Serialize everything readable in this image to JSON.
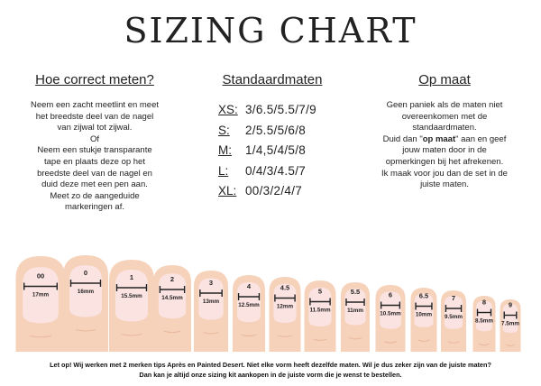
{
  "title": "SIZING CHART",
  "measure": {
    "heading": "Hoe correct meten?",
    "lines": [
      "Neem een zacht meetlint en meet",
      "het breedste deel van de nagel",
      "van zijwal tot zijwal.",
      "Of",
      "Neem een stukje transparante",
      "tape en plaats deze op het",
      "breedste deel van de nagel en",
      "duid deze met een pen aan.",
      "Meet zo de aangeduide",
      "markeringen af."
    ]
  },
  "standard": {
    "heading": "Standaardmaten",
    "sizes": [
      {
        "label": "XS:",
        "value": "3/6.5/5.5/7/9"
      },
      {
        "label": "S:",
        "value": "2/5.5/5/6/8"
      },
      {
        "label": "M:",
        "value": "1/4,5/4/5/8"
      },
      {
        "label": "L:",
        "value": "0/4/3/4.5/7"
      },
      {
        "label": "XL:",
        "value": "00/3/2/4/7"
      }
    ]
  },
  "custom": {
    "heading": "Op maat",
    "line1": "Geen paniek als de maten niet",
    "line2": "overeenkomen met de",
    "line3": "standaardmaten.",
    "line4_pre": "Duid dan \"",
    "line4_bold": "op maat",
    "line4_post": "\" aan en geef",
    "line5": "jouw maten door in de",
    "line6": "opmerkingen bij het afrekenen.",
    "line7": "Ik maak voor jou dan de set in de",
    "line8": "juiste maten."
  },
  "nails": [
    {
      "size": "00",
      "width": "17mm"
    },
    {
      "size": "0",
      "width": "16mm"
    },
    {
      "size": "1",
      "width": "15.5mm"
    },
    {
      "size": "2",
      "width": "14.5mm"
    },
    {
      "size": "3",
      "width": "13mm"
    },
    {
      "size": "4",
      "width": "12.5mm"
    },
    {
      "size": "4.5",
      "width": "12mm"
    },
    {
      "size": "5",
      "width": "11.5mm"
    },
    {
      "size": "5.5",
      "width": "11mm"
    },
    {
      "size": "6",
      "width": "10.5mm"
    },
    {
      "size": "6.5",
      "width": "10mm"
    },
    {
      "size": "7",
      "width": "9.5mm"
    },
    {
      "size": "8",
      "width": "8.5mm"
    },
    {
      "size": "9",
      "width": "7.5mm"
    }
  ],
  "footer": {
    "line1": "Let op! Wij werken met 2 merken tips Après en Painted Desert. Niet elke vorm heeft dezelfde maten. Wil je dus zeker zijn van de juiste maten?",
    "line2": "Dan kan je altijd onze sizing kit aankopen in de juiste vorm die je wenst te bestellen."
  },
  "colors": {
    "skin": "#f6d2bb",
    "nail": "#fbe3e1",
    "crease": "#e9b89c",
    "text": "#222222"
  }
}
